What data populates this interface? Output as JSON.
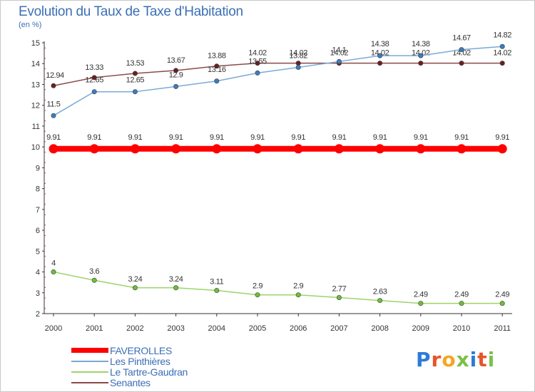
{
  "header": {
    "title": "Evolution du Taux de Taxe d'Habitation",
    "unit": "(en %)"
  },
  "logo": {
    "text": "Proxiti",
    "colors": [
      "#2e7bd6",
      "#e8532b",
      "#f5a623",
      "#7cc04a",
      "#2e7bd6",
      "#e8532b",
      "#7cc04a"
    ]
  },
  "chart_data": {
    "type": "line",
    "title": "Evolution du Taux de Taxe d'Habitation",
    "ylabel": "(en %)",
    "xlabel": "",
    "ylim": [
      2,
      15
    ],
    "yticks": [
      "2",
      "3",
      "4",
      "5",
      "6",
      "7",
      "8",
      "9",
      "10",
      "11",
      "12",
      "13",
      "14",
      "15"
    ],
    "x": [
      "2000",
      "2001",
      "2002",
      "2003",
      "2004",
      "2005",
      "2006",
      "2007",
      "2008",
      "2009",
      "2010",
      "2011"
    ],
    "grid": false,
    "legend_position": "bottom-left",
    "series": [
      {
        "name": "FAVEROLLES",
        "color": "#ff0000",
        "style": "thick",
        "values": [
          9.91,
          9.91,
          9.91,
          9.91,
          9.91,
          9.91,
          9.91,
          9.91,
          9.91,
          9.91,
          9.91,
          9.91
        ],
        "labels": [
          "9.91",
          "9.91",
          "9.91",
          "9.91",
          "9.91",
          "9.91",
          "9.91",
          "9.91",
          "9.91",
          "9.91",
          "9.91",
          "9.91"
        ]
      },
      {
        "name": "Les Pinthières",
        "color": "#7aaad6",
        "marker": "#3b7dbf",
        "style": "thin",
        "values": [
          11.5,
          12.65,
          12.65,
          12.9,
          13.16,
          13.55,
          13.82,
          14.1,
          14.38,
          14.38,
          14.67,
          14.82
        ],
        "labels": [
          "11.5",
          "12.65",
          "12.65",
          "12.9",
          "13.16",
          "13.55",
          "13.82",
          "14.1",
          "14.38",
          "14.38",
          "14.67",
          "14.82"
        ]
      },
      {
        "name": "Le Tartre-Gaudran",
        "color": "#9ed36a",
        "marker": "#6cbf3a",
        "style": "thin",
        "values": [
          4,
          3.6,
          3.24,
          3.24,
          3.11,
          2.9,
          2.9,
          2.77,
          2.63,
          2.49,
          2.49,
          2.49
        ],
        "labels": [
          "4",
          "3.6",
          "3.24",
          "3.24",
          "3.11",
          "2.9",
          "2.9",
          "2.77",
          "2.63",
          "2.49",
          "2.49",
          "2.49"
        ]
      },
      {
        "name": "Senantes",
        "color": "#8b4a4a",
        "marker": "#6b1f1f",
        "style": "thin",
        "values": [
          12.94,
          13.33,
          13.53,
          13.67,
          13.88,
          14.02,
          14.02,
          14.02,
          14.02,
          14.02,
          14.02,
          14.02
        ],
        "labels": [
          "12.94",
          "13.33",
          "13.53",
          "13.67",
          "13.88",
          "14.02",
          "14.02",
          "14.02",
          "14.02",
          "14.02",
          "14.02",
          "14.02"
        ]
      }
    ]
  }
}
